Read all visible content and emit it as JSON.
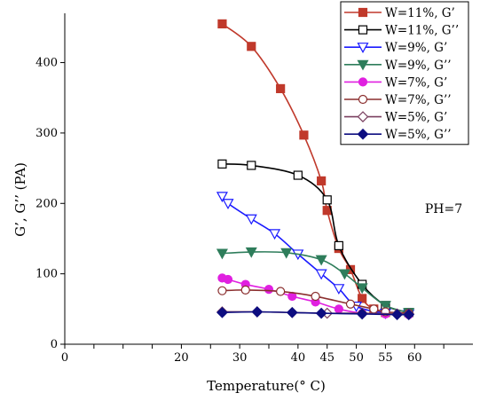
{
  "chart_data": {
    "type": "line",
    "xlabel": "Temperature(° C)",
    "ylabel": "G’, G’’ (PA)",
    "xlim": [
      0,
      70
    ],
    "ylim": [
      0,
      470
    ],
    "xticks": [
      0,
      5,
      10,
      15,
      20,
      25,
      30,
      35,
      40,
      45,
      50,
      55,
      60,
      65
    ],
    "xtick_labels": [
      "0",
      "",
      "",
      "",
      "20",
      "",
      "30",
      "",
      "40",
      "45",
      "50",
      "55",
      "60",
      ""
    ],
    "yticks": [
      0,
      100,
      200,
      300,
      400
    ],
    "grid": false,
    "legend_position": "top-right",
    "annotation": "PH=7",
    "series": [
      {
        "name": "W=11%, G’",
        "color": "#c0392b",
        "marker": "square-filled",
        "x": [
          27,
          32,
          37,
          41,
          44,
          45,
          47,
          49,
          51,
          53,
          55
        ],
        "y": [
          455,
          423,
          363,
          297,
          232,
          190,
          136,
          106,
          65,
          50,
          45
        ]
      },
      {
        "name": "W=11%, G’’",
        "color": "#000000",
        "marker": "square-open",
        "x": [
          27,
          32,
          40,
          45,
          47,
          51,
          55,
          59
        ],
        "y": [
          256,
          254,
          240,
          205,
          140,
          85,
          55,
          45
        ]
      },
      {
        "name": "W=9%, G’",
        "color": "#1a1aff",
        "marker": "triangle-down-open",
        "x": [
          27,
          28,
          32,
          36,
          40,
          44,
          47,
          50,
          55,
          59
        ],
        "y": [
          210,
          200,
          178,
          157,
          128,
          100,
          79,
          54,
          44,
          43
        ]
      },
      {
        "name": "W=9%, G’’",
        "color": "#2e7d5b",
        "marker": "triangle-down-filled",
        "x": [
          27,
          32,
          38,
          44,
          48,
          51,
          55,
          59
        ],
        "y": [
          129,
          131,
          130,
          120,
          100,
          80,
          55,
          45
        ]
      },
      {
        "name": "W=7%, G’",
        "color": "#e020e0",
        "marker": "circle-filled",
        "x": [
          27,
          28,
          31,
          35,
          39,
          43,
          47,
          51,
          55,
          59
        ],
        "y": [
          94,
          92,
          85,
          78,
          68,
          60,
          50,
          44,
          43,
          42
        ]
      },
      {
        "name": "W=7%, G’’",
        "color": "#8b2f2f",
        "marker": "circle-open",
        "x": [
          27,
          31,
          37,
          43,
          49,
          53,
          55,
          59
        ],
        "y": [
          76,
          77,
          75,
          68,
          57,
          50,
          46,
          44
        ]
      },
      {
        "name": "W=5%, G’",
        "color": "#7a4060",
        "marker": "diamond-open",
        "x": [
          27,
          33,
          39,
          45,
          51,
          57,
          59
        ],
        "y": [
          46,
          46,
          45,
          44,
          44,
          43,
          43
        ]
      },
      {
        "name": "W=5%, G’’",
        "color": "#0d0d80",
        "marker": "diamond-filled",
        "x": [
          27,
          33,
          39,
          44,
          51,
          57,
          59
        ],
        "y": [
          45,
          46,
          45,
          44,
          43,
          42,
          42
        ]
      }
    ]
  }
}
